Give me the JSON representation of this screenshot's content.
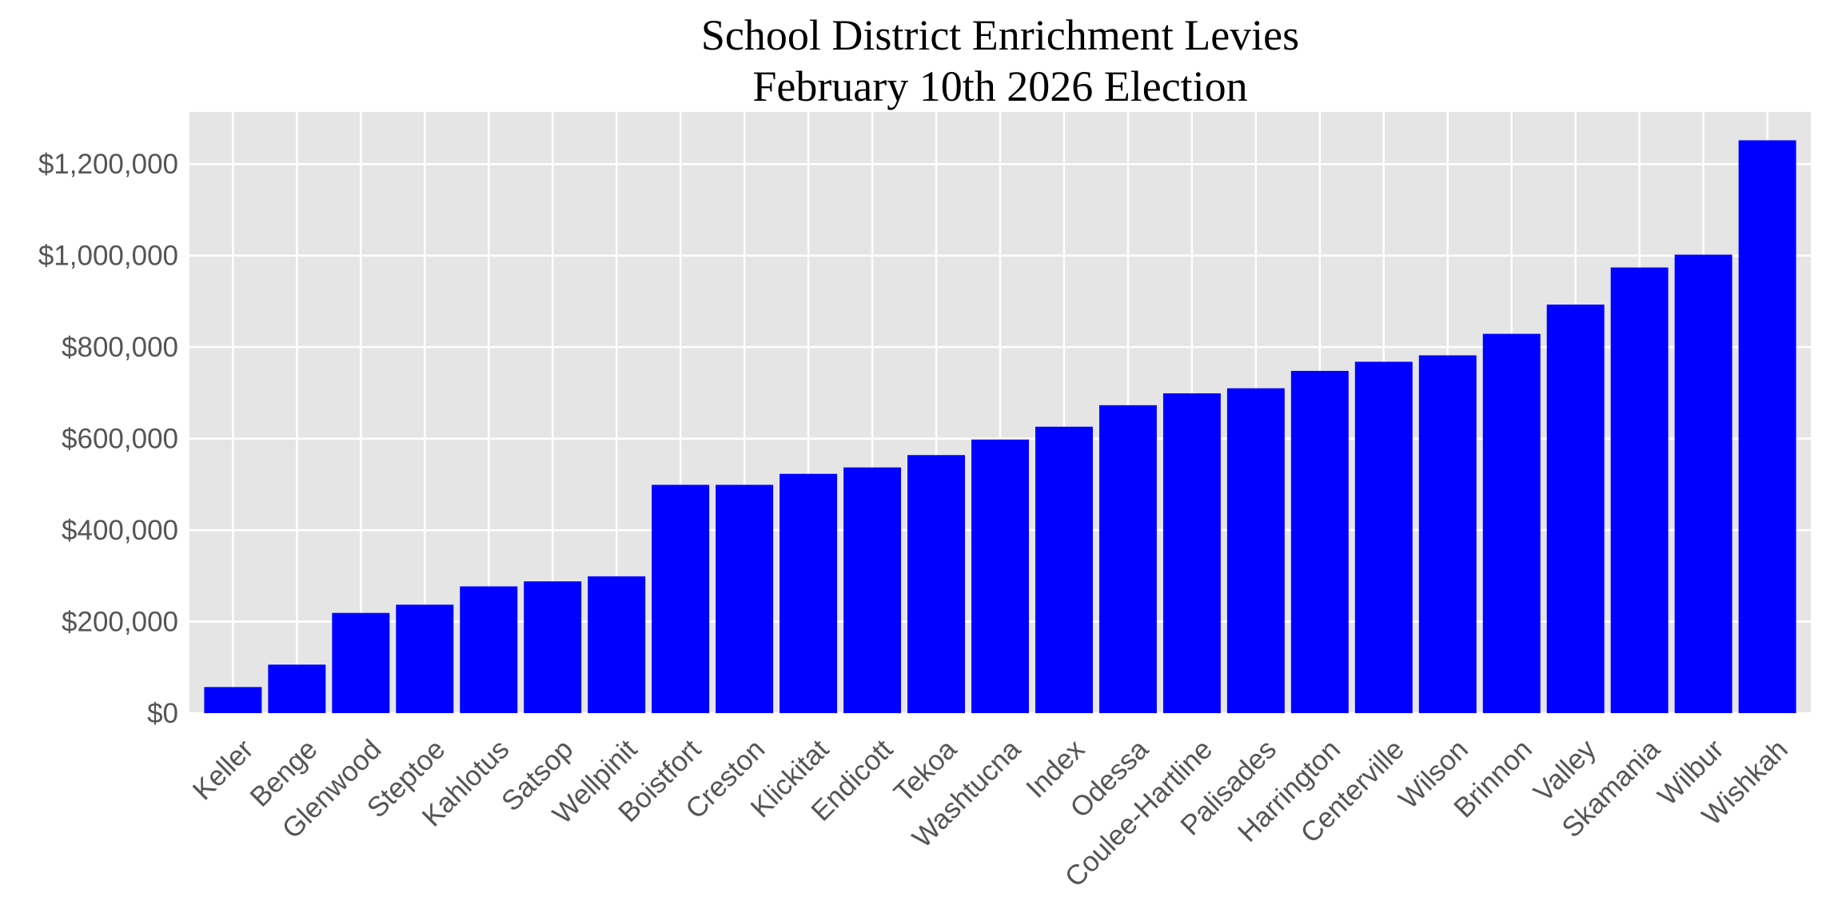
{
  "chart_data": {
    "type": "bar",
    "title": "School District Enrichment Levies\nFebruary 10th 2026 Election",
    "title_lines": [
      "School District Enrichment Levies",
      "February 10th 2026 Election"
    ],
    "xlabel": "",
    "ylabel": "",
    "categories": [
      "Keller",
      "Benge",
      "Glenwood",
      "Steptoe",
      "Kahlotus",
      "Satsop",
      "Wellpinit",
      "Boistfort",
      "Creston",
      "Klickitat",
      "Endicott",
      "Tekoa",
      "Washtucna",
      "Index",
      "Odessa",
      "Coulee-Hartline",
      "Palisades",
      "Harrington",
      "Centerville",
      "Wilson",
      "Brinnon",
      "Valley",
      "Skamania",
      "Wilbur",
      "Wishkah"
    ],
    "values": [
      57000,
      106000,
      219000,
      237000,
      277000,
      288000,
      299000,
      499000,
      499000,
      523000,
      537000,
      564000,
      598000,
      626000,
      673000,
      699000,
      710000,
      748000,
      768000,
      782000,
      829000,
      893000,
      974000,
      1002000,
      1252000
    ],
    "ylim": [
      0,
      1314000
    ],
    "yticks": [
      0,
      200000,
      400000,
      600000,
      800000,
      1000000,
      1200000
    ],
    "ytick_labels": [
      "$0",
      "$200,000",
      "$400,000",
      "$600,000",
      "$800,000",
      "$1,000,000",
      "$1,200,000"
    ],
    "x_tick_rotation": 45,
    "grid": true,
    "bar_color": "#0000ff",
    "background_color": "#e5e5e5",
    "grid_color": "#ffffff",
    "legend": "none"
  }
}
